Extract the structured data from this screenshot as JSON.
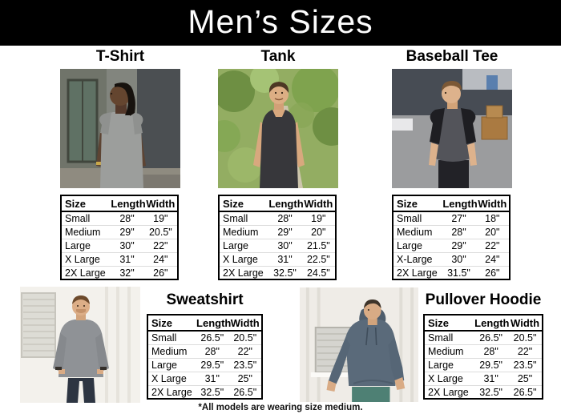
{
  "page": {
    "title": "Men’s Sizes",
    "footnote": "*All models are wearing size medium."
  },
  "colors": {
    "header_bg": "#000000",
    "header_text": "#ffffff",
    "table_border": "#000000",
    "body_bg": "#ffffff"
  },
  "table_columns": [
    "Size",
    "Length",
    "Width"
  ],
  "products": [
    {
      "title": "T-Shirt",
      "photo": "Man with shoulder-length dreadlocks wearing a heather gray t-shirt in front of an industrial building",
      "rows": [
        [
          "Small",
          "28\"",
          "19\""
        ],
        [
          "Medium",
          "29\"",
          "20.5\""
        ],
        [
          "Large",
          "30\"",
          "22\""
        ],
        [
          "X Large",
          "31\"",
          "24\""
        ],
        [
          "2X Large",
          "32\"",
          "26\""
        ]
      ]
    },
    {
      "title": "Tank",
      "photo": "Smiling man wearing a dark gray tank top standing on a tree-lined path",
      "rows": [
        [
          "Small",
          "28\"",
          "19\""
        ],
        [
          "Medium",
          "29\"",
          "20\""
        ],
        [
          "Large",
          "30\"",
          "21.5\""
        ],
        [
          "X Large",
          "31\"",
          "22.5\""
        ],
        [
          "2X Large",
          "32.5\"",
          "24.5\""
        ]
      ]
    },
    {
      "title": "Baseball Tee",
      "photo": "Man wearing a charcoal baseball tee with black raglan sleeves in an industrial lot",
      "rows": [
        [
          "Small",
          "27\"",
          "18\""
        ],
        [
          "Medium",
          "28\"",
          "20\""
        ],
        [
          "Large",
          "29\"",
          "22\""
        ],
        [
          "X-Large",
          "30\"",
          "24\""
        ],
        [
          "2X Large",
          "31.5\"",
          "26\""
        ]
      ]
    },
    {
      "title": "Sweatshirt",
      "photo": "Man wearing a gray crewneck sweatshirt with hands in pockets beside a white wall",
      "rows": [
        [
          "Small",
          "26.5\"",
          "20.5\""
        ],
        [
          "Medium",
          "28\"",
          "22\""
        ],
        [
          "Large",
          "29.5\"",
          "23.5\""
        ],
        [
          "X Large",
          "31\"",
          "25\""
        ],
        [
          "2X Large",
          "32.5\"",
          "26.5\""
        ]
      ]
    },
    {
      "title": "Pullover Hoodie",
      "photo": "Man wearing a slate blue pullover hoodie and teal pants leaning against a white building",
      "rows": [
        [
          "Small",
          "26.5\"",
          "20.5\""
        ],
        [
          "Medium",
          "28\"",
          "22\""
        ],
        [
          "Large",
          "29.5\"",
          "23.5\""
        ],
        [
          "X Large",
          "31\"",
          "25\""
        ],
        [
          "2X Large",
          "32.5\"",
          "26.5\""
        ]
      ]
    }
  ]
}
